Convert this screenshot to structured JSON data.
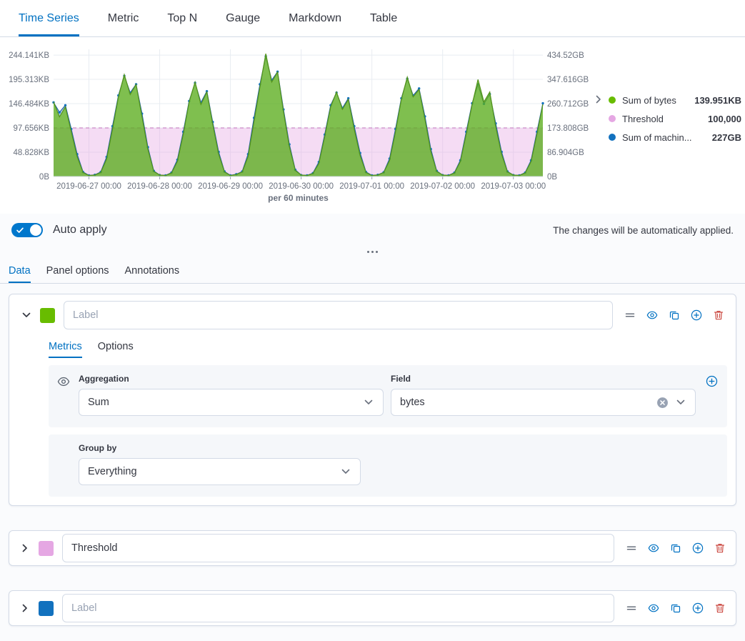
{
  "nav": {
    "tabs": [
      {
        "label": "Time Series"
      },
      {
        "label": "Metric"
      },
      {
        "label": "Top N"
      },
      {
        "label": "Gauge"
      },
      {
        "label": "Markdown"
      },
      {
        "label": "Table"
      }
    ]
  },
  "chart": {
    "legend": [
      {
        "label": "Sum of bytes",
        "value": "139.951KB",
        "color": "#68BC00"
      },
      {
        "label": "Threshold",
        "value": "100,000",
        "color": "#E5A7E3"
      },
      {
        "label": "Sum of machin...",
        "value": "227GB",
        "color": "#1271BE"
      }
    ]
  },
  "chart_data": {
    "type": "area",
    "title": "",
    "xlabel": "per 60 minutes",
    "x_start": "2019-06-26 12:00",
    "point_interval_hours": 2,
    "x_range_hours": 166,
    "x_ticks": [
      {
        "hour": 12,
        "label": "2019-06-27 00:00"
      },
      {
        "hour": 36,
        "label": "2019-06-28 00:00"
      },
      {
        "hour": 60,
        "label": "2019-06-29 00:00"
      },
      {
        "hour": 84,
        "label": "2019-06-30 00:00"
      },
      {
        "hour": 108,
        "label": "2019-07-01 00:00"
      },
      {
        "hour": 132,
        "label": "2019-07-02 00:00"
      },
      {
        "hour": 156,
        "label": "2019-07-03 00:00"
      }
    ],
    "left_axis": {
      "unit": "KB",
      "max": 250,
      "ticks": [
        {
          "value": 0,
          "label": "0B"
        },
        {
          "value": 48.828,
          "label": "48.828KB"
        },
        {
          "value": 97.656,
          "label": "97.656KB"
        },
        {
          "value": 146.484,
          "label": "146.484KB"
        },
        {
          "value": 195.313,
          "label": "195.313KB"
        },
        {
          "value": 244.141,
          "label": "244.141KB"
        }
      ]
    },
    "right_axis": {
      "unit": "GB",
      "max": 445,
      "ticks": [
        {
          "value": 0,
          "label": "0B"
        },
        {
          "value": 86.904,
          "label": "86.904GB"
        },
        {
          "value": 173.808,
          "label": "173.808GB"
        },
        {
          "value": 260.712,
          "label": "260.712GB"
        },
        {
          "value": 347.616,
          "label": "347.616GB"
        },
        {
          "value": 434.52,
          "label": "434.52GB"
        }
      ]
    },
    "threshold": {
      "value_kb": 97.656,
      "display": "100,000",
      "color": "#E5A7E3",
      "fill": "rgba(229,167,227,0.4)"
    },
    "series": [
      {
        "name": "Sum of bytes",
        "axis": "left",
        "color": "#68BC00",
        "stroke": "#55941B",
        "fill": "rgba(104,188,0,0.65)",
        "values_kb": [
          150,
          120,
          140,
          90,
          40,
          8,
          2,
          3,
          8,
          35,
          95,
          160,
          205,
          165,
          185,
          120,
          55,
          10,
          3,
          2,
          7,
          30,
          85,
          150,
          190,
          145,
          170,
          105,
          45,
          9,
          2,
          4,
          9,
          40,
          110,
          180,
          247,
          190,
          210,
          130,
          60,
          12,
          3,
          2,
          6,
          26,
          80,
          140,
          170,
          135,
          155,
          95,
          42,
          8,
          2,
          3,
          8,
          32,
          90,
          155,
          200,
          160,
          175,
          115,
          50,
          10,
          3,
          2,
          7,
          30,
          85,
          145,
          195,
          150,
          170,
          100,
          45,
          9,
          3,
          2,
          7,
          30,
          85,
          145
        ]
      },
      {
        "name": "Sum of machin...",
        "axis": "right",
        "color": "#1271BE",
        "stroke": "#2163A6",
        "fill": "rgba(38,111,180,0.40)",
        "values_gb": [
          265,
          230,
          255,
          170,
          80,
          16,
          4,
          6,
          16,
          70,
          180,
          290,
          360,
          300,
          330,
          225,
          105,
          20,
          5,
          4,
          14,
          60,
          160,
          270,
          335,
          265,
          305,
          195,
          88,
          18,
          4,
          8,
          18,
          80,
          210,
          330,
          430,
          345,
          375,
          240,
          115,
          24,
          5,
          4,
          12,
          52,
          150,
          255,
          300,
          245,
          280,
          180,
          84,
          16,
          4,
          6,
          15,
          64,
          170,
          280,
          350,
          290,
          315,
          215,
          98,
          20,
          5,
          4,
          14,
          58,
          160,
          262,
          330,
          260,
          295,
          190,
          88,
          18,
          5,
          4,
          14,
          58,
          160,
          262
        ]
      }
    ]
  },
  "auto_apply": {
    "label": "Auto apply",
    "hint": "The changes will be automatically applied."
  },
  "editor_tabs": [
    {
      "label": "Data"
    },
    {
      "label": "Panel options"
    },
    {
      "label": "Annotations"
    }
  ],
  "series": [
    {
      "color": "#68BC00",
      "input_placeholder": "Label",
      "tabs": {
        "metrics": "Metrics",
        "options": "Options"
      },
      "aggregation": {
        "label": "Aggregation",
        "value": "Sum"
      },
      "field": {
        "label": "Field",
        "value": "bytes"
      },
      "group_by": {
        "label": "Group by",
        "value": "Everything"
      }
    },
    {
      "color": "#E5A7E3",
      "input_value": "Threshold"
    },
    {
      "color": "#1271BE",
      "input_placeholder": "Label"
    }
  ]
}
